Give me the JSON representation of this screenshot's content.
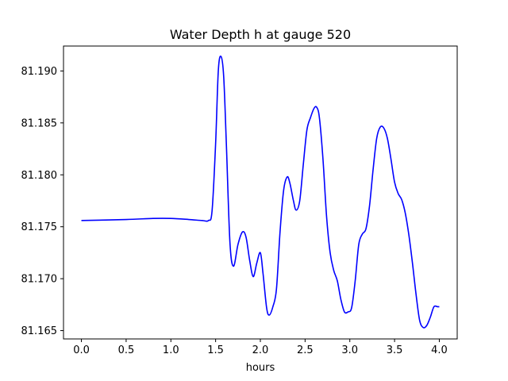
{
  "chart_data": {
    "type": "line",
    "title": "Water Depth h at gauge 520",
    "xlabel": "hours",
    "ylabel": "",
    "xlim": [
      -0.2,
      4.2
    ],
    "ylim": [
      81.1642,
      81.1924
    ],
    "xticks": [
      0.0,
      0.5,
      1.0,
      1.5,
      2.0,
      2.5,
      3.0,
      3.5,
      4.0
    ],
    "xtick_labels": [
      "0.0",
      "0.5",
      "1.0",
      "1.5",
      "2.0",
      "2.5",
      "3.0",
      "3.5",
      "4.0"
    ],
    "yticks": [
      81.165,
      81.17,
      81.175,
      81.18,
      81.185,
      81.19
    ],
    "ytick_labels": [
      "81.165",
      "81.170",
      "81.175",
      "81.180",
      "81.185",
      "81.190"
    ],
    "grid": false,
    "series": [
      {
        "color": "#0000ff",
        "x": [
          0.0,
          0.5,
          0.8,
          1.0,
          1.2,
          1.35,
          1.42,
          1.46,
          1.5,
          1.53,
          1.56,
          1.59,
          1.62,
          1.66,
          1.7,
          1.75,
          1.8,
          1.84,
          1.88,
          1.92,
          1.96,
          2.0,
          2.03,
          2.07,
          2.1,
          2.14,
          2.18,
          2.22,
          2.26,
          2.3,
          2.33,
          2.37,
          2.4,
          2.44,
          2.48,
          2.52,
          2.56,
          2.6,
          2.63,
          2.66,
          2.7,
          2.74,
          2.78,
          2.82,
          2.86,
          2.9,
          2.94,
          2.98,
          3.02,
          3.06,
          3.1,
          3.14,
          3.18,
          3.22,
          3.26,
          3.3,
          3.34,
          3.38,
          3.42,
          3.46,
          3.5,
          3.54,
          3.58,
          3.62,
          3.66,
          3.7,
          3.74,
          3.78,
          3.82,
          3.86,
          3.9,
          3.94,
          3.98,
          4.0
        ],
        "y": [
          81.1756,
          81.1757,
          81.1758,
          81.1758,
          81.1757,
          81.1756,
          81.1756,
          81.1765,
          81.183,
          81.19,
          81.1914,
          81.1895,
          81.183,
          81.1735,
          81.1712,
          81.1733,
          81.1745,
          81.174,
          81.1718,
          81.1702,
          81.1715,
          81.1725,
          81.1705,
          81.1672,
          81.1665,
          81.1673,
          81.169,
          81.1745,
          81.1785,
          81.1798,
          81.1792,
          81.1775,
          81.1766,
          81.1775,
          81.181,
          81.1843,
          81.1855,
          81.1864,
          81.1865,
          81.1855,
          81.1815,
          81.176,
          81.1725,
          81.1708,
          81.1698,
          81.168,
          81.1668,
          81.1668,
          81.1672,
          81.1698,
          81.1733,
          81.1743,
          81.1748,
          81.177,
          81.1805,
          81.1835,
          81.1846,
          81.1845,
          81.1835,
          81.1815,
          81.1793,
          81.1782,
          81.1776,
          81.1763,
          81.1742,
          81.1715,
          81.1685,
          81.166,
          81.1653,
          81.1655,
          81.1663,
          81.1673,
          81.1673,
          81.1673
        ]
      }
    ]
  }
}
